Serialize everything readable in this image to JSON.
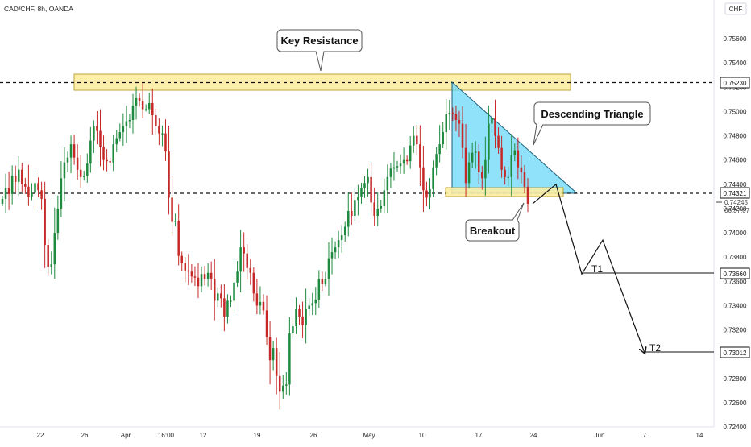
{
  "header": {
    "symbol": "CAD/CHF, 8h, OANDA",
    "currency": "CHF"
  },
  "annotations": {
    "key_resistance": "Key Resistance",
    "descending_triangle": "Descending Triangle",
    "breakout": "Breakout",
    "t1": "T1",
    "t2": "T2"
  },
  "price_badges": {
    "resistance": "0.75230",
    "support": "0.74321",
    "current": "0.74245",
    "countdown": "06:37:07",
    "t1": "0.73660",
    "t2": "0.73012"
  },
  "colors": {
    "up": "#1e8a3e",
    "down": "#c62828",
    "zone_fill": "#fbeea3",
    "zone_stroke": "#b59a2a",
    "triangle_fill": "#6ad8f7",
    "triangle_stroke": "#1b5e78"
  },
  "chart_data": {
    "type": "candlestick",
    "title": "CAD/CHF, 8h, OANDA",
    "ylim": [
      0.724,
      0.758
    ],
    "y_ticks": [
      "0.75600",
      "0.75400",
      "0.75200",
      "0.75000",
      "0.74800",
      "0.74600",
      "0.74400",
      "0.74200",
      "0.74000",
      "0.73800",
      "0.73600",
      "0.73400",
      "0.73200",
      "0.73000",
      "0.72800",
      "0.72600",
      "0.72400"
    ],
    "x_ticks": [
      "22",
      "26",
      "Apr",
      "16:00",
      "12",
      "19",
      "26",
      "May",
      "10",
      "17",
      "24",
      "Jun",
      "7",
      "14"
    ],
    "key_levels": {
      "resistance": 0.7523,
      "support": 0.74321,
      "t1": 0.7366,
      "t2": 0.73012
    },
    "projection": [
      0.7424,
      0.744,
      0.7366,
      0.7394,
      0.7301
    ],
    "closes": [
      0.7428,
      0.7437,
      0.7432,
      0.7447,
      0.7442,
      0.7452,
      0.744,
      0.7438,
      0.743,
      0.7433,
      0.7441,
      0.7435,
      0.7428,
      0.739,
      0.7372,
      0.7374,
      0.74,
      0.742,
      0.7445,
      0.7458,
      0.7462,
      0.7473,
      0.7462,
      0.7452,
      0.7446,
      0.7447,
      0.7457,
      0.7476,
      0.7488,
      0.7484,
      0.7471,
      0.746,
      0.7459,
      0.7458,
      0.7473,
      0.7478,
      0.7483,
      0.7488,
      0.7492,
      0.7493,
      0.7505,
      0.7511,
      0.7509,
      0.7502,
      0.7502,
      0.7507,
      0.7497,
      0.7488,
      0.7482,
      0.7482,
      0.7467,
      0.7429,
      0.7409,
      0.741,
      0.7381,
      0.7375,
      0.7369,
      0.7368,
      0.7364,
      0.7363,
      0.7356,
      0.7366,
      0.7362,
      0.7367,
      0.7362,
      0.7344,
      0.735,
      0.7346,
      0.7331,
      0.7344,
      0.7344,
      0.7359,
      0.7368,
      0.7388,
      0.7383,
      0.7371,
      0.7367,
      0.735,
      0.734,
      0.7343,
      0.7336,
      0.7314,
      0.7295,
      0.7305,
      0.7282,
      0.7269,
      0.7274,
      0.7275,
      0.7317,
      0.7323,
      0.7337,
      0.7331,
      0.7324,
      0.7337,
      0.734,
      0.7342,
      0.7345,
      0.7362,
      0.7358,
      0.7362,
      0.7379,
      0.7384,
      0.7388,
      0.7394,
      0.7398,
      0.7405,
      0.7418,
      0.7414,
      0.7427,
      0.743,
      0.7437,
      0.7441,
      0.7446,
      0.7425,
      0.7414,
      0.742,
      0.7422,
      0.7435,
      0.7446,
      0.7453,
      0.7454,
      0.7455,
      0.7457,
      0.746,
      0.7459,
      0.7472,
      0.748,
      0.7473,
      0.7454,
      0.7435,
      0.7429,
      0.7436,
      0.7454,
      0.7465,
      0.7473,
      0.7483,
      0.7498,
      0.7499,
      0.7498,
      0.7493,
      0.749,
      0.747,
      0.7441,
      0.7458,
      0.7466,
      0.7467,
      0.745,
      0.7445,
      0.746,
      0.749,
      0.7495,
      0.748,
      0.747,
      0.7452,
      0.7446,
      0.7446,
      0.7464,
      0.7468,
      0.7454,
      0.745,
      0.7438,
      0.7424
    ]
  }
}
